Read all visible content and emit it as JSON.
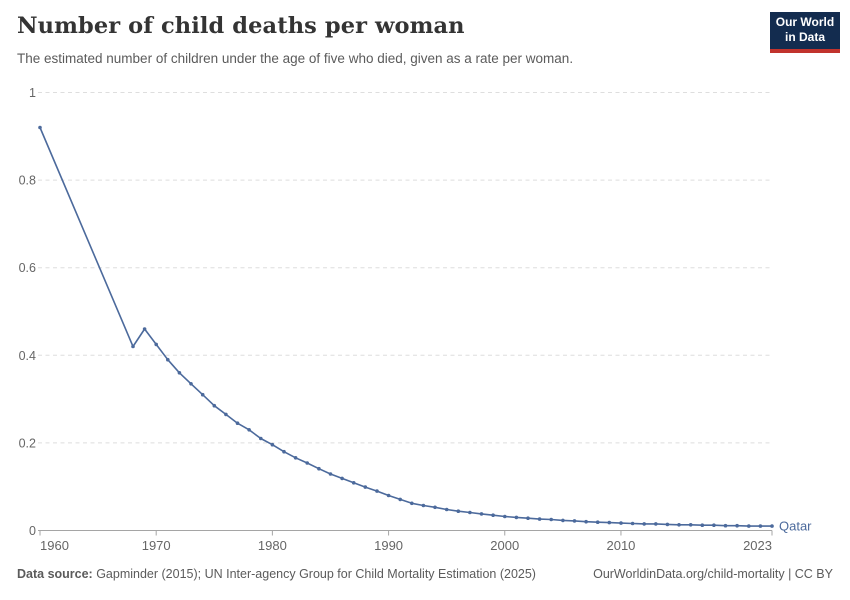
{
  "header": {
    "title": "Number of child deaths per woman",
    "subtitle": "The estimated number of children under the age of five who died, given as a rate per woman.",
    "logo": {
      "line1": "Our World",
      "line2": "in Data"
    }
  },
  "footer": {
    "source_label": "Data source:",
    "source_text": " Gapminder (2015); UN Inter-agency Group for Child Mortality Estimation (2025)",
    "link_text": "OurWorldinData.org/child-mortality | CC BY"
  },
  "colors": {
    "line": "#4c6a9c",
    "grid": "#dedede",
    "axis": "#a5a5a5",
    "tick_text": "#666666",
    "logo_bg": "#132c4f",
    "logo_red": "#c1332d"
  },
  "chart_data": {
    "type": "line",
    "title": "Number of child deaths per woman",
    "xlabel": "",
    "ylabel": "",
    "xlim": [
      1960,
      2023
    ],
    "ylim": [
      0,
      1
    ],
    "grid": "horizontal-dashed",
    "legend_position": "end-of-line",
    "x_ticks": [
      1960,
      1970,
      1980,
      1990,
      2000,
      2010,
      2023
    ],
    "y_ticks": [
      0,
      0.2,
      0.4,
      0.6,
      0.8,
      1
    ],
    "series": [
      {
        "name": "Qatar",
        "points": [
          [
            1960,
            0.92
          ],
          [
            1968,
            0.42
          ],
          [
            1969,
            0.46
          ],
          [
            1970,
            0.425
          ],
          [
            1971,
            0.39
          ],
          [
            1972,
            0.36
          ],
          [
            1973,
            0.335
          ],
          [
            1974,
            0.31
          ],
          [
            1975,
            0.285
          ],
          [
            1976,
            0.265
          ],
          [
            1977,
            0.245
          ],
          [
            1978,
            0.23
          ],
          [
            1979,
            0.21
          ],
          [
            1980,
            0.196
          ],
          [
            1981,
            0.18
          ],
          [
            1982,
            0.166
          ],
          [
            1983,
            0.154
          ],
          [
            1984,
            0.141
          ],
          [
            1985,
            0.129
          ],
          [
            1986,
            0.119
          ],
          [
            1987,
            0.109
          ],
          [
            1988,
            0.099
          ],
          [
            1989,
            0.09
          ],
          [
            1990,
            0.08
          ],
          [
            1991,
            0.071
          ],
          [
            1992,
            0.062
          ],
          [
            1993,
            0.057
          ],
          [
            1994,
            0.053
          ],
          [
            1995,
            0.048
          ],
          [
            1996,
            0.044
          ],
          [
            1997,
            0.041
          ],
          [
            1998,
            0.038
          ],
          [
            1999,
            0.035
          ],
          [
            2000,
            0.032
          ],
          [
            2001,
            0.03
          ],
          [
            2002,
            0.028
          ],
          [
            2003,
            0.026
          ],
          [
            2004,
            0.025
          ],
          [
            2005,
            0.023
          ],
          [
            2006,
            0.022
          ],
          [
            2007,
            0.02
          ],
          [
            2008,
            0.019
          ],
          [
            2009,
            0.018
          ],
          [
            2010,
            0.017
          ],
          [
            2011,
            0.016
          ],
          [
            2012,
            0.015
          ],
          [
            2013,
            0.015
          ],
          [
            2014,
            0.014
          ],
          [
            2015,
            0.013
          ],
          [
            2016,
            0.013
          ],
          [
            2017,
            0.012
          ],
          [
            2018,
            0.012
          ],
          [
            2019,
            0.011
          ],
          [
            2020,
            0.011
          ],
          [
            2021,
            0.01
          ],
          [
            2022,
            0.01
          ],
          [
            2023,
            0.01
          ]
        ]
      }
    ]
  }
}
